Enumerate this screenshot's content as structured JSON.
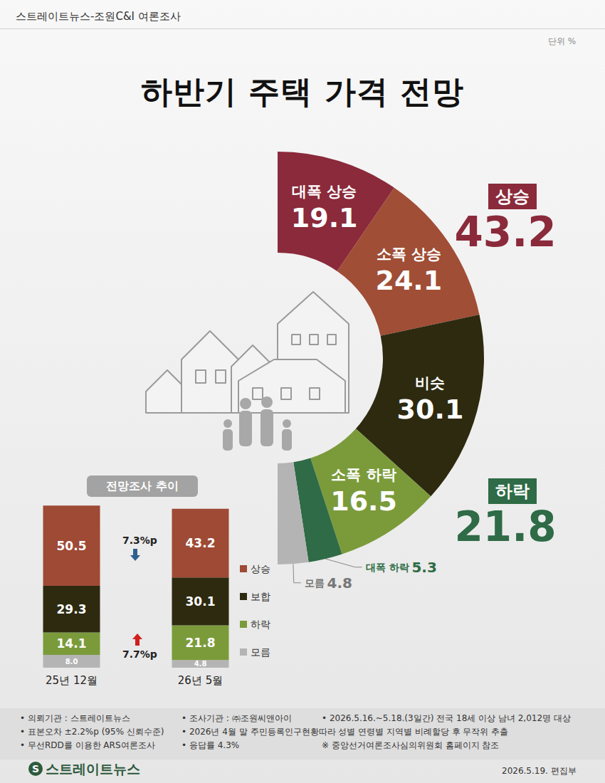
{
  "header": {
    "source": "스트레이트뉴스-조원C&I 여론조사",
    "unit": "단위 %"
  },
  "title": "하반기 주택 가격 전망",
  "chart_data": [
    {
      "type": "pie",
      "categories": [
        "대폭 상승",
        "소폭 상승",
        "비슷",
        "소폭 하락",
        "대폭 하락",
        "모름"
      ],
      "values": [
        19.1,
        24.1,
        30.1,
        16.5,
        5.3,
        4.8
      ],
      "colors": [
        "#8a2a3a",
        "#a04e36",
        "#2d2a10",
        "#7b9b3b",
        "#2e6b46",
        "#b4b4b4"
      ],
      "data_labels": true,
      "annotations": [
        {
          "text": "상승",
          "value": 43.2,
          "color": "#8a2a3a"
        },
        {
          "text": "하락",
          "value": 21.8,
          "color": "#2e6b46"
        }
      ]
    },
    {
      "type": "bar",
      "title": "전망조사 추이",
      "categories": [
        "25년 12월",
        "26년 5월"
      ],
      "stacked": true,
      "series": [
        {
          "name": "상승",
          "color": "#9e4a35",
          "values": [
            50.5,
            43.2
          ]
        },
        {
          "name": "보합",
          "color": "#2d2a10",
          "values": [
            29.3,
            30.1
          ]
        },
        {
          "name": "하락",
          "color": "#7b9b3b",
          "values": [
            14.1,
            21.8
          ]
        },
        {
          "name": "모름",
          "color": "#b4b4b4",
          "values": [
            8.0,
            4.8
          ],
          "value_labels": [
            "8.0",
            "4.8"
          ]
        }
      ],
      "ylim": [
        0,
        102
      ],
      "tick_labels": "x",
      "legend": "right",
      "data_labels": true,
      "annotations": [
        "7.3%p",
        "7.7%p"
      ]
    }
  ],
  "footer": {
    "rows": [
      [
        "• 의뢰기관 : 스트레이트뉴스",
        "• 조사기관 : ㈜조원씨앤아이",
        "• 2026.5.16.~5.18.(3일간) 전국 18세 이상 남녀 2,012명 대상"
      ],
      [
        "• 표본오차 ±2.2%p (95% 신뢰수준)",
        "• 2026년 4월 말 주민등록인구현황따라 성별 연령별 지역별 비례할당 후 무작위 추출"
      ],
      [
        "• 무선RDD를 이용한 ARS여론조사",
        "• 응답률 4.3%",
        "※ 중앙선거여론조사심의위원회 홈페이지 참조"
      ]
    ],
    "logo": {
      "mark": "S",
      "text": "스트레이트뉴스"
    },
    "date": "2026.5.19. 편집부"
  }
}
